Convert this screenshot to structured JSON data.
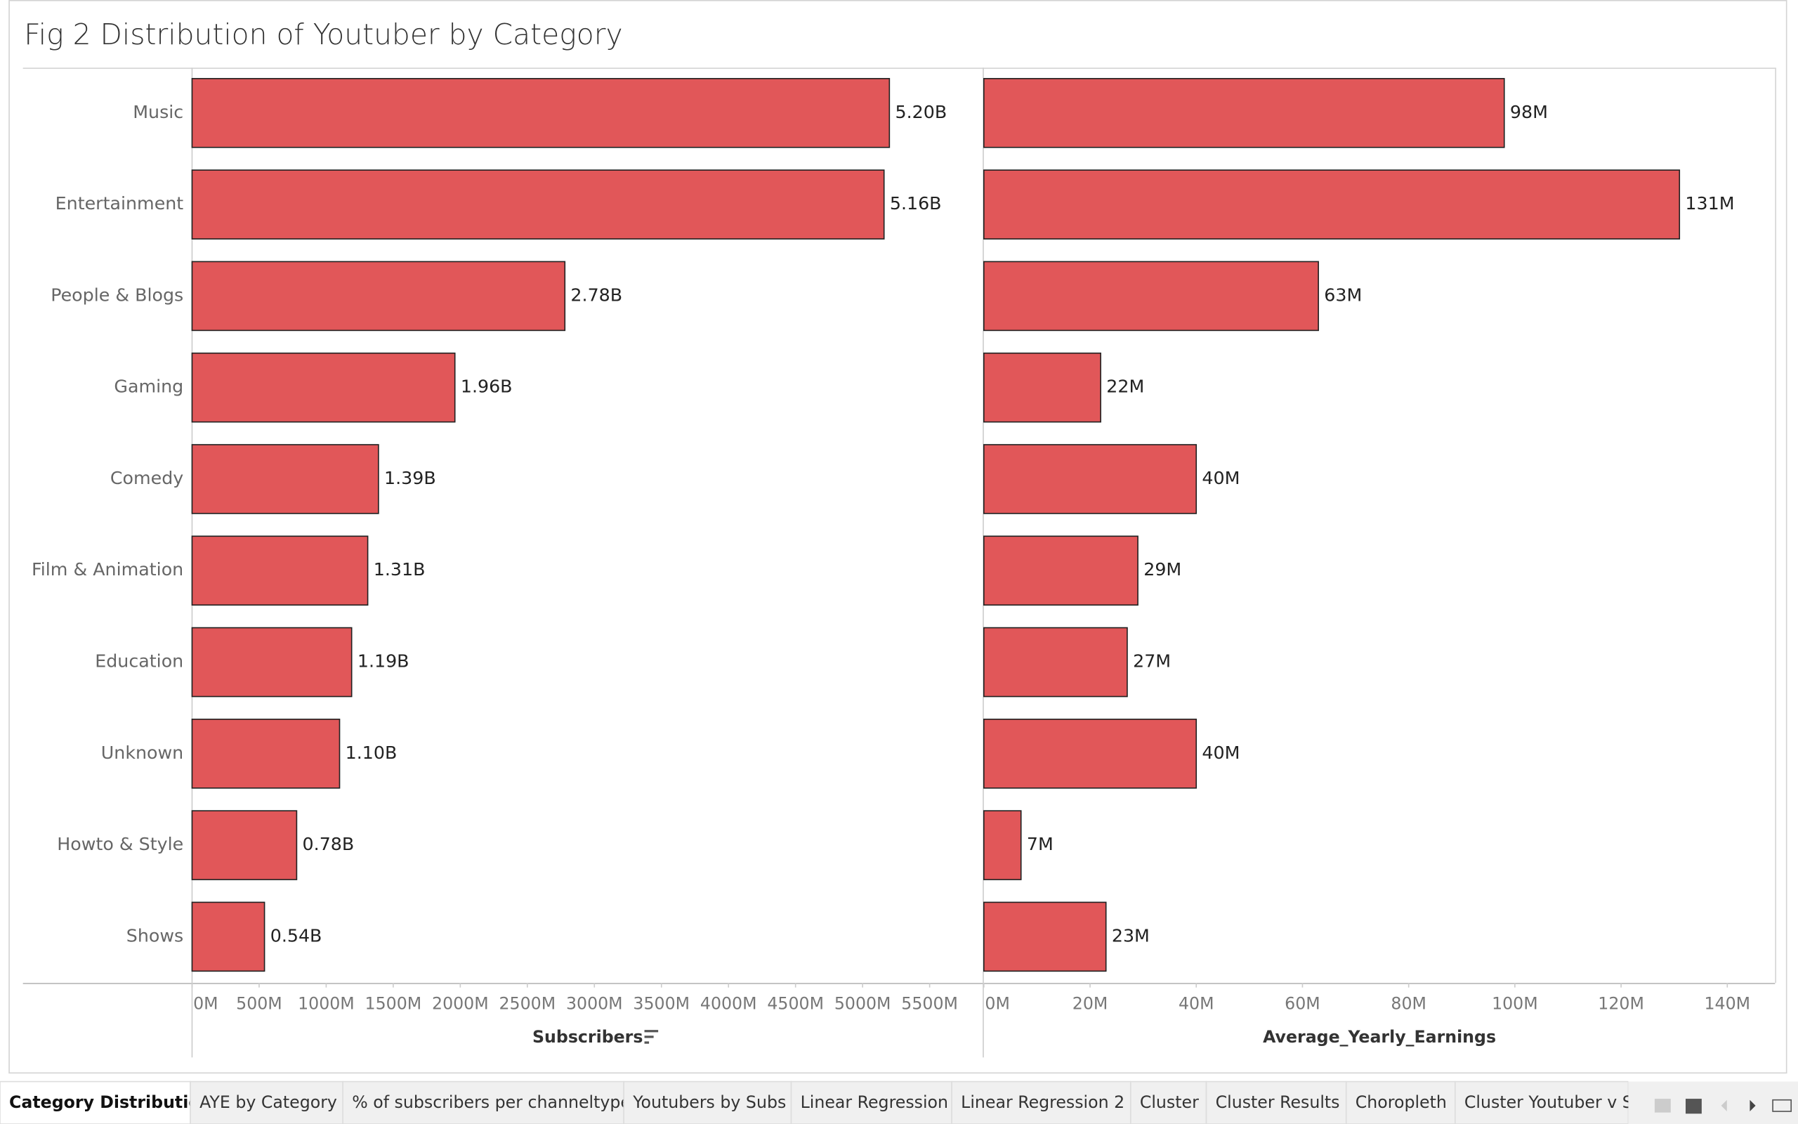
{
  "title": "Fig 2 Distribution of Youtuber by Category",
  "chart_data": [
    {
      "type": "bar",
      "x_label": "Subscribers",
      "categories": [
        "Music",
        "Entertainment",
        "People & Blogs",
        "Gaming",
        "Comedy",
        "Film & Animation",
        "Education",
        "Unknown",
        "Howto & Style",
        "Shows"
      ],
      "values": [
        5200,
        5160,
        2780,
        1960,
        1390,
        1310,
        1190,
        1100,
        780,
        540
      ],
      "value_labels": [
        "5.20B",
        "5.16B",
        "2.78B",
        "1.96B",
        "1.39B",
        "1.31B",
        "1.19B",
        "1.10B",
        "0.78B",
        "0.54B"
      ],
      "color": "#e15759",
      "xlim": [
        0,
        5900
      ],
      "xticks": [
        {
          "value": 0,
          "label": "0M"
        },
        {
          "value": 500,
          "label": "500M"
        },
        {
          "value": 1000,
          "label": "1000M"
        },
        {
          "value": 1500,
          "label": "1500M"
        },
        {
          "value": 2000,
          "label": "2000M"
        },
        {
          "value": 2500,
          "label": "2500M"
        },
        {
          "value": 3000,
          "label": "3000M"
        },
        {
          "value": 3500,
          "label": "3500M"
        },
        {
          "value": 4000,
          "label": "4000M"
        },
        {
          "value": 4500,
          "label": "4500M"
        },
        {
          "value": 5000,
          "label": "5000M"
        },
        {
          "value": 5500,
          "label": "5500M"
        }
      ]
    },
    {
      "type": "bar",
      "x_label": "Average_Yearly_Earnings",
      "values": [
        98,
        131,
        63,
        22,
        40,
        29,
        27,
        40,
        7,
        23
      ],
      "value_labels": [
        "98M",
        "131M",
        "63M",
        "22M",
        "40M",
        "29M",
        "27M",
        "40M",
        "7M",
        "23M"
      ],
      "color": "#e15759",
      "xlim": [
        0,
        149
      ],
      "xticks": [
        {
          "value": 0,
          "label": "0M"
        },
        {
          "value": 20,
          "label": "20M"
        },
        {
          "value": 40,
          "label": "40M"
        },
        {
          "value": 60,
          "label": "60M"
        },
        {
          "value": 80,
          "label": "80M"
        },
        {
          "value": 100,
          "label": "100M"
        },
        {
          "value": 120,
          "label": "120M"
        },
        {
          "value": 140,
          "label": "140M"
        }
      ]
    }
  ],
  "tabs": [
    "Category Distribution",
    "AYE by Category",
    "% of subscribers per channeltype",
    "Youtubers by Subs",
    "Linear Regression",
    "Linear Regression 2",
    "Cluster",
    "Cluster Results",
    "Choropleth",
    "Cluster Youtuber v Su"
  ]
}
